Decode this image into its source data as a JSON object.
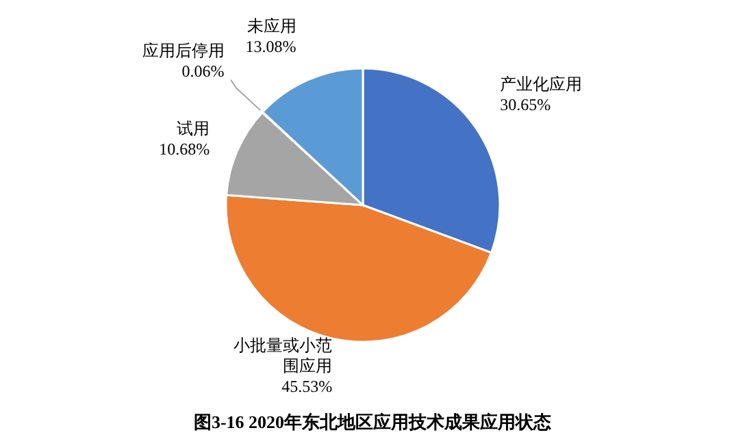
{
  "chart_data": {
    "type": "pie",
    "title": "图3-16  2020年东北地区应用技术成果应用状态",
    "categories": [
      "产业化应用",
      "小批量或小范围应用",
      "试用",
      "应用后停用",
      "未应用"
    ],
    "values": [
      30.65,
      45.53,
      10.68,
      0.06,
      13.08
    ],
    "colors": [
      "#4472c4",
      "#ed7d31",
      "#a5a5a5",
      "#ffc000",
      "#5b9bd5"
    ],
    "value_labels": [
      "30.65%",
      "45.53%",
      "10.68%",
      "0.06%",
      "13.08%"
    ],
    "legend": false
  }
}
